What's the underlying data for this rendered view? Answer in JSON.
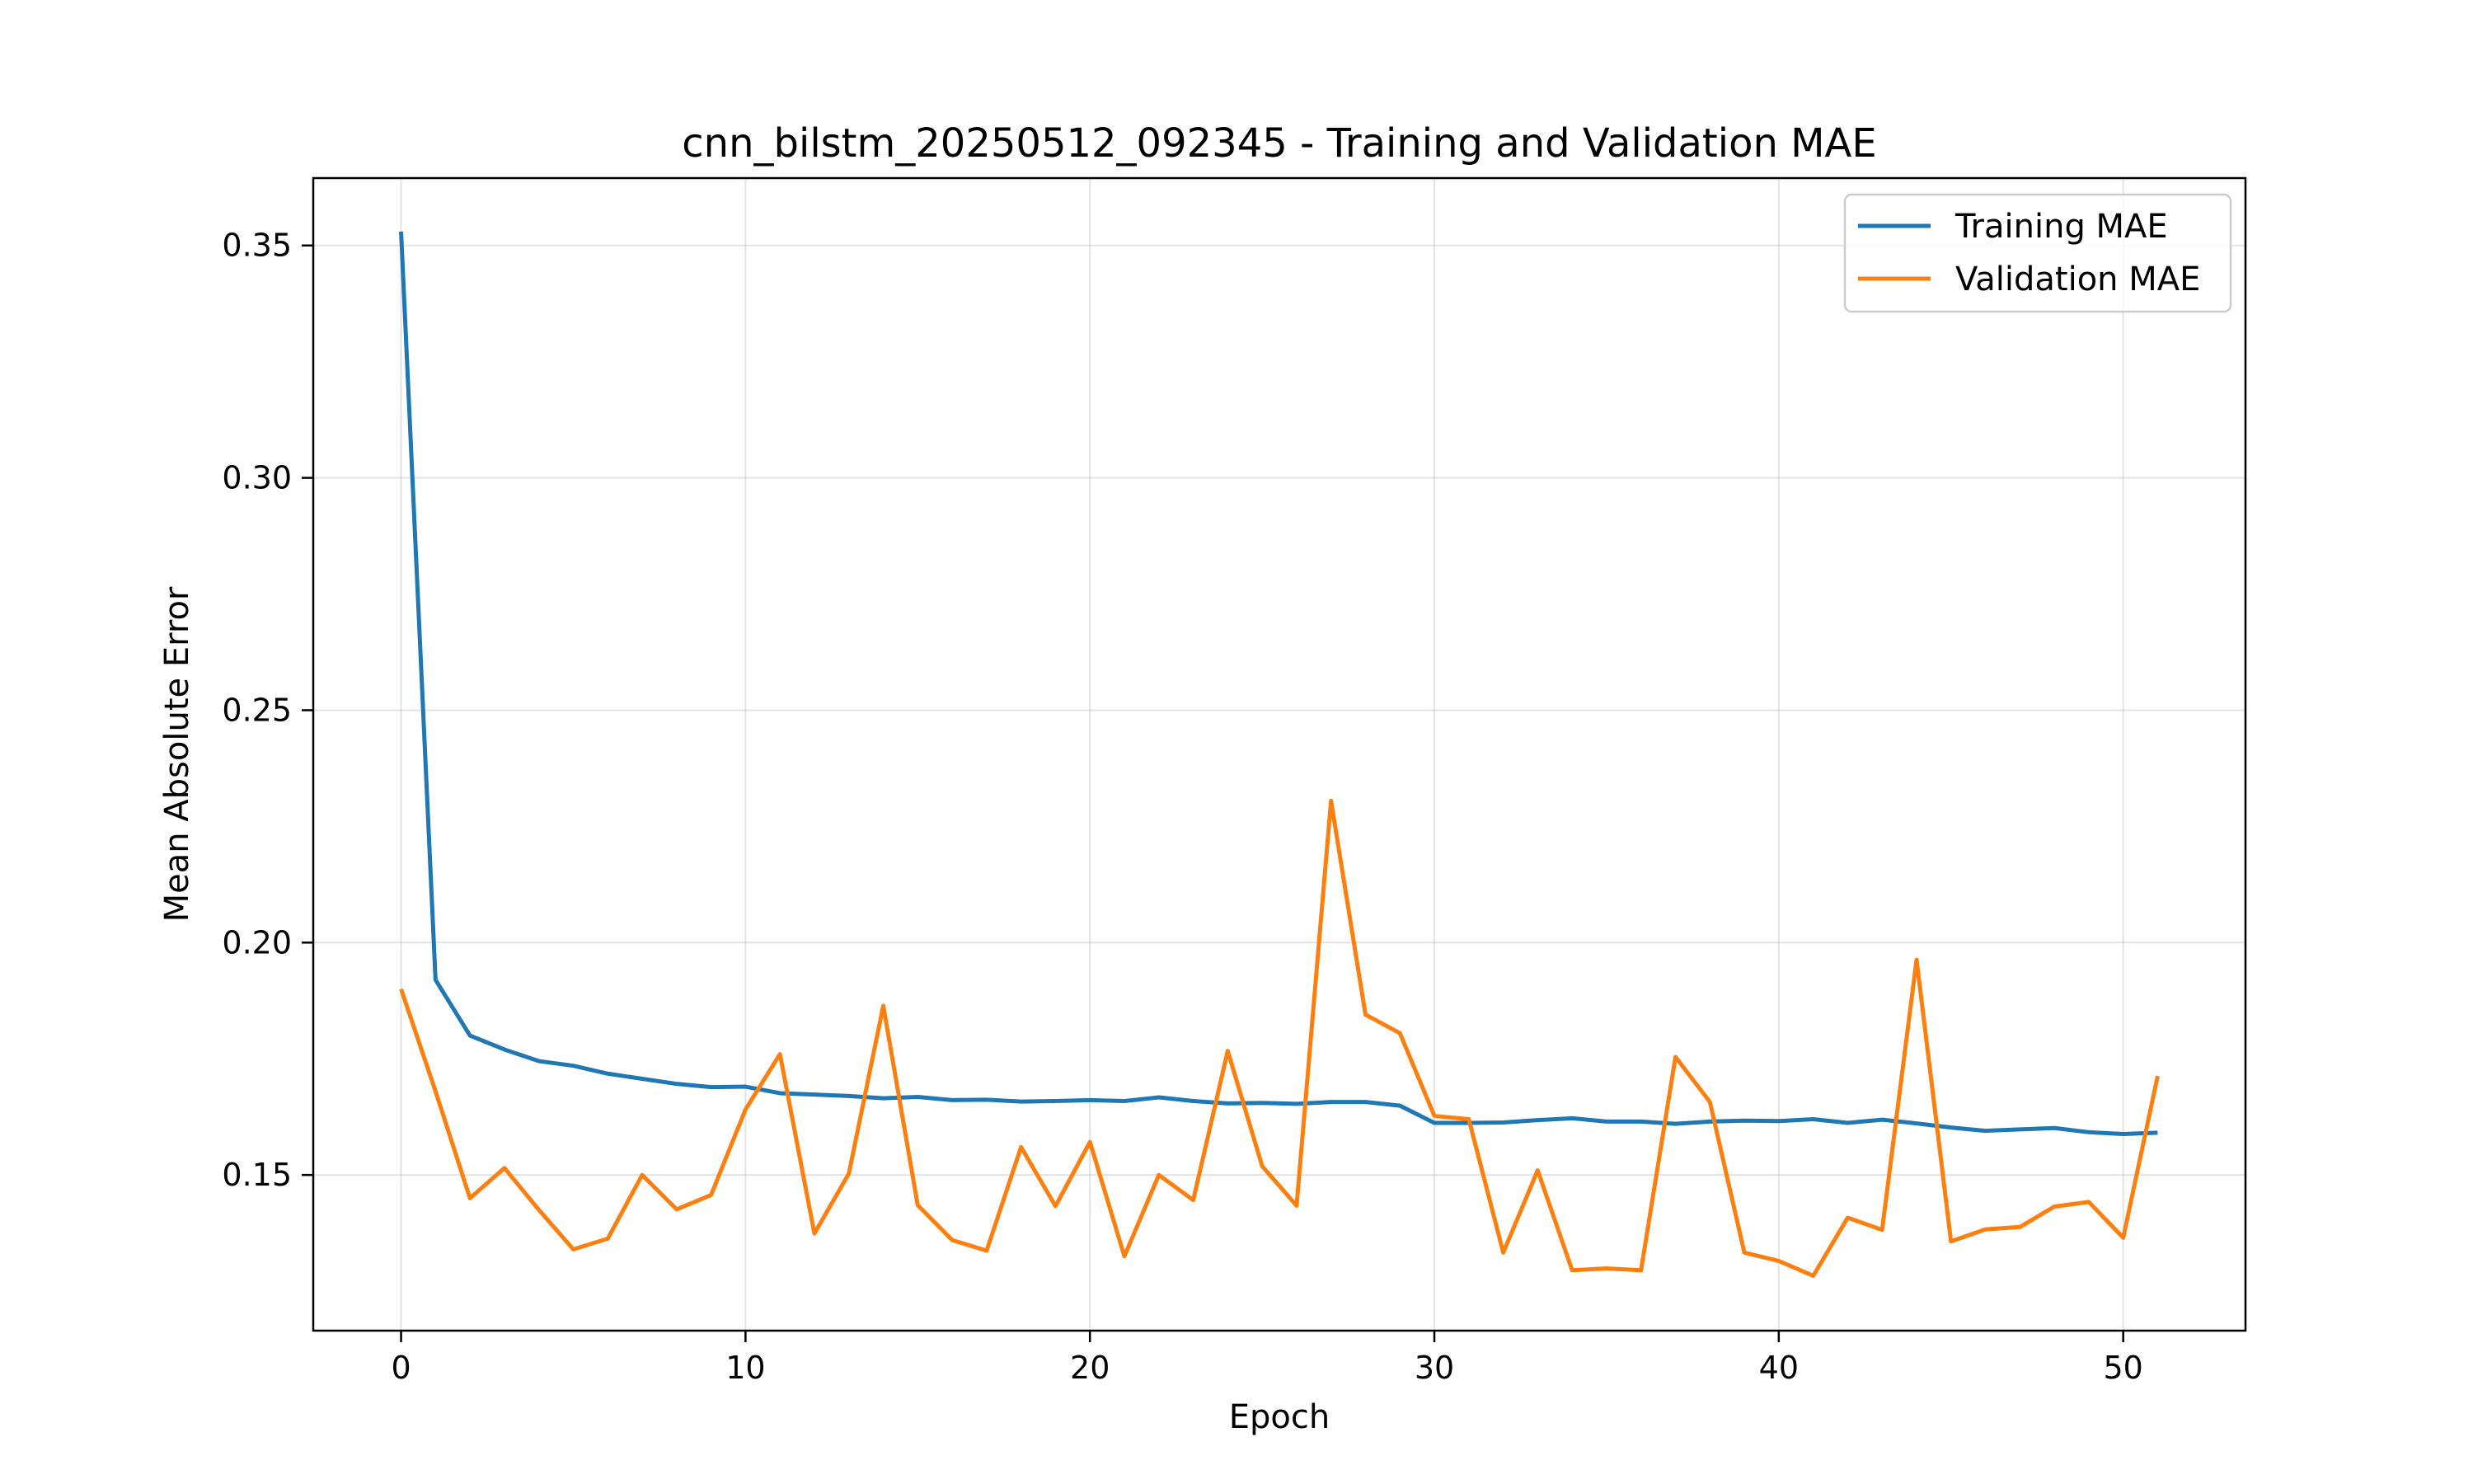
{
  "chart_data": {
    "type": "line",
    "title": "cnn_bilstm_20250512_092345 - Training and Validation MAE",
    "xlabel": "Epoch",
    "ylabel": "Mean Absolute Error",
    "xlim": [
      -2.55,
      53.55
    ],
    "ylim": [
      0.1165,
      0.3645
    ],
    "xticks": [
      0,
      10,
      20,
      30,
      40,
      50
    ],
    "xtick_labels": [
      "0",
      "10",
      "20",
      "30",
      "40",
      "50"
    ],
    "yticks": [
      0.15,
      0.2,
      0.25,
      0.3,
      0.35
    ],
    "ytick_labels": [
      "0.15",
      "0.20",
      "0.25",
      "0.30",
      "0.35"
    ],
    "grid": true,
    "legend_position": "upper right",
    "x": [
      0,
      1,
      2,
      3,
      4,
      5,
      6,
      7,
      8,
      9,
      10,
      11,
      12,
      13,
      14,
      15,
      16,
      17,
      18,
      19,
      20,
      21,
      22,
      23,
      24,
      25,
      26,
      27,
      28,
      29,
      30,
      31,
      32,
      33,
      34,
      35,
      36,
      37,
      38,
      39,
      40,
      41,
      42,
      43,
      44,
      45,
      46,
      47,
      48,
      49,
      50,
      51
    ],
    "series": [
      {
        "name": "Training MAE",
        "color": "#1f77b4",
        "values": [
          0.353,
          0.192,
          0.18,
          0.177,
          0.1745,
          0.1735,
          0.1718,
          0.1707,
          0.1696,
          0.1689,
          0.169,
          0.1676,
          0.1673,
          0.167,
          0.1665,
          0.1668,
          0.1661,
          0.1662,
          0.1658,
          0.1659,
          0.1661,
          0.1659,
          0.1667,
          0.1659,
          0.1654,
          0.1655,
          0.1653,
          0.1657,
          0.1657,
          0.1649,
          0.1612,
          0.1612,
          0.1613,
          0.1618,
          0.1622,
          0.1615,
          0.1615,
          0.161,
          0.1615,
          0.1617,
          0.1616,
          0.162,
          0.1612,
          0.1619,
          0.1611,
          0.1602,
          0.1595,
          0.1598,
          0.1601,
          0.1592,
          0.1588,
          0.1591
        ]
      },
      {
        "name": "Validation MAE",
        "color": "#ff7f0e",
        "values": [
          0.19,
          0.168,
          0.145,
          0.1515,
          0.1425,
          0.134,
          0.1363,
          0.15,
          0.1426,
          0.1457,
          0.1641,
          0.176,
          0.1374,
          0.1503,
          0.1864,
          0.1435,
          0.136,
          0.1337,
          0.156,
          0.1433,
          0.1571,
          0.1325,
          0.15,
          0.1446,
          0.1767,
          0.1519,
          0.1434,
          0.2305,
          0.1845,
          0.1805,
          0.1627,
          0.162,
          0.1333,
          0.151,
          0.1295,
          0.1299,
          0.1295,
          0.1754,
          0.1657,
          0.1333,
          0.1315,
          0.1283,
          0.1408,
          0.1382,
          0.1963,
          0.1357,
          0.1383,
          0.1388,
          0.1432,
          0.1442,
          0.1365,
          0.1713
        ]
      }
    ]
  }
}
